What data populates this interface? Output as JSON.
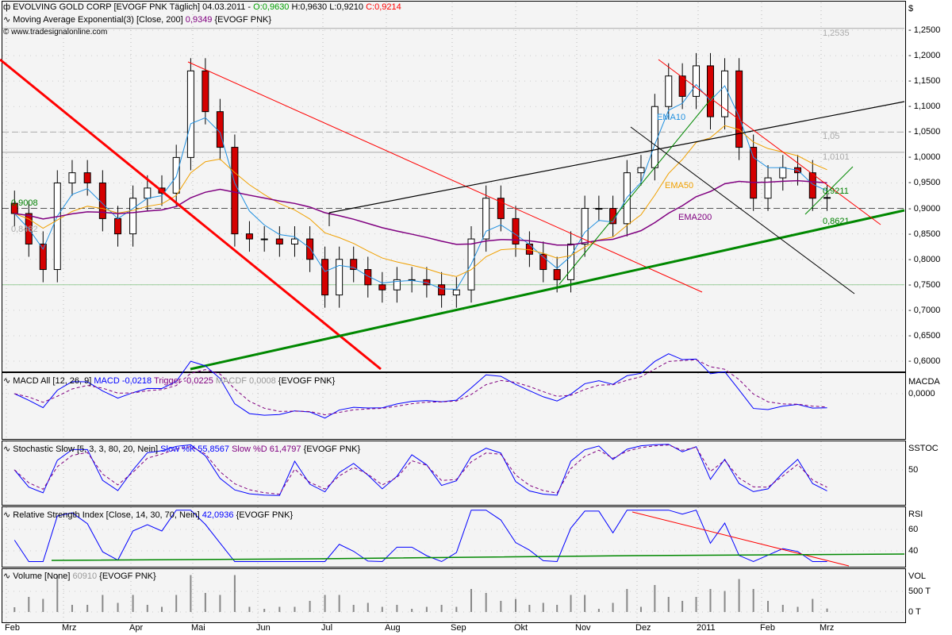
{
  "header": {
    "title": "EVOLVING GOLD CORP [EVOGF PNK  Täglich] 04.03.2011 -",
    "open": "O:0,9630",
    "high": "H:0,9630",
    "low": "L:0,9210",
    "close": "C:0,9214",
    "ema_label": "Moving Average Exponential(3) [Close, 200]",
    "ema_value": "0,9349",
    "ema_symbol": "{EVOGF PNK}",
    "source": "www.tradesignalonline.com"
  },
  "colors": {
    "up": "#ffffff",
    "down": "#d40000",
    "ema10": "#2090e0",
    "ema50": "#f0a000",
    "ema200": "#800080",
    "open": "#009900",
    "close": "#ff0000"
  },
  "macd": {
    "label": "MACD All [12, 26, 9]",
    "macd": "MACD -0,0218",
    "trigger": "Trigger -0,0225",
    "macdf": "MACDF 0,0008",
    "symbol": "{EVOGF PNK}",
    "axis_title": "MACDA",
    "tick": "0,0000"
  },
  "stoch": {
    "label": "Stochastic Slow [5, 3, 3, 80, 20, Nein]",
    "k": "Slow %K 55,8567",
    "d": "Slow %D 61,4797",
    "symbol": "{EVOGF PNK}",
    "axis_title": "SSTOC",
    "tick": "50"
  },
  "rsi": {
    "label": "Relative Strength Index [Close, 14, 30, 70, Nein]",
    "value": "42,0936",
    "symbol": "{EVOGF PNK}",
    "axis_title": "RSI",
    "ticks": [
      "60",
      "40"
    ]
  },
  "volume": {
    "label": "Volume [None]",
    "value": "60910",
    "symbol": "{EVOGF PNK}",
    "axis_title": "VOL",
    "ticks": [
      "500 T",
      "0 T"
    ]
  },
  "chart_data": {
    "type": "candlestick",
    "title": "EVOLVING GOLD CORP [EVOGF PNK Täglich]",
    "ylabel": "$",
    "ylim": [
      0.6,
      1.25
    ],
    "y_ticks": [
      "1,2500",
      "1,2000",
      "1,1500",
      "1,1000",
      "1,0500",
      "1,0000",
      "0,9500",
      "0,9000",
      "0,8500",
      "0,8000",
      "0,7500",
      "0,7000",
      "0,6500",
      "0,6000"
    ],
    "x_ticks": [
      "Feb",
      "Mrz",
      "Apr",
      "Mai",
      "Jun",
      "Jul",
      "Aug",
      "Sep",
      "Okt",
      "Nov",
      "Dez",
      "2011",
      "Feb",
      "Mrz"
    ],
    "grid": true,
    "dates": [
      "2010-02-05",
      "2010-02-12",
      "2010-02-19",
      "2010-02-26",
      "2010-03-05",
      "2010-03-12",
      "2010-03-19",
      "2010-03-26",
      "2010-04-02",
      "2010-04-09",
      "2010-04-16",
      "2010-04-23",
      "2010-04-30",
      "2010-05-07",
      "2010-05-14",
      "2010-05-21",
      "2010-05-28",
      "2010-06-04",
      "2010-06-11",
      "2010-06-18",
      "2010-06-25",
      "2010-07-02",
      "2010-07-09",
      "2010-07-16",
      "2010-07-23",
      "2010-07-30",
      "2010-08-06",
      "2010-08-13",
      "2010-08-20",
      "2010-08-27",
      "2010-09-03",
      "2010-09-10",
      "2010-09-17",
      "2010-09-24",
      "2010-10-01",
      "2010-10-08",
      "2010-10-15",
      "2010-10-22",
      "2010-10-29",
      "2010-11-05",
      "2010-11-12",
      "2010-11-19",
      "2010-11-26",
      "2010-12-03",
      "2010-12-10",
      "2010-12-17",
      "2010-12-24",
      "2010-12-31",
      "2011-01-07",
      "2011-01-14",
      "2011-01-21",
      "2011-01-28",
      "2011-02-04",
      "2011-02-11",
      "2011-02-18",
      "2011-02-25",
      "2011-03-04"
    ],
    "close": [
      0.89,
      0.83,
      0.78,
      0.95,
      0.97,
      0.95,
      0.88,
      0.85,
      0.92,
      0.94,
      0.93,
      1.0,
      1.17,
      1.09,
      1.02,
      0.85,
      0.84,
      0.84,
      0.83,
      0.84,
      0.8,
      0.73,
      0.8,
      0.78,
      0.75,
      0.74,
      0.76,
      0.76,
      0.75,
      0.73,
      0.74,
      0.84,
      0.92,
      0.88,
      0.83,
      0.81,
      0.78,
      0.76,
      0.83,
      0.9,
      0.9,
      0.87,
      0.97,
      0.98,
      1.1,
      1.16,
      1.12,
      1.18,
      1.08,
      1.17,
      1.02,
      0.92,
      0.96,
      0.98,
      0.97,
      0.92,
      0.9214
    ],
    "series_labels": [
      "EMA10",
      "EMA50",
      "EMA200"
    ],
    "levels": [
      {
        "label": "1,2535",
        "value": 1.2535
      },
      {
        "label": "1,05",
        "value": 1.05
      },
      {
        "label": "1,0101",
        "value": 1.0101
      },
      {
        "label": "0,9211",
        "value": 0.9211
      },
      {
        "label": "0,8621",
        "value": 0.8621
      }
    ],
    "left_labels": [
      "0,9008",
      "0,8482"
    ]
  }
}
